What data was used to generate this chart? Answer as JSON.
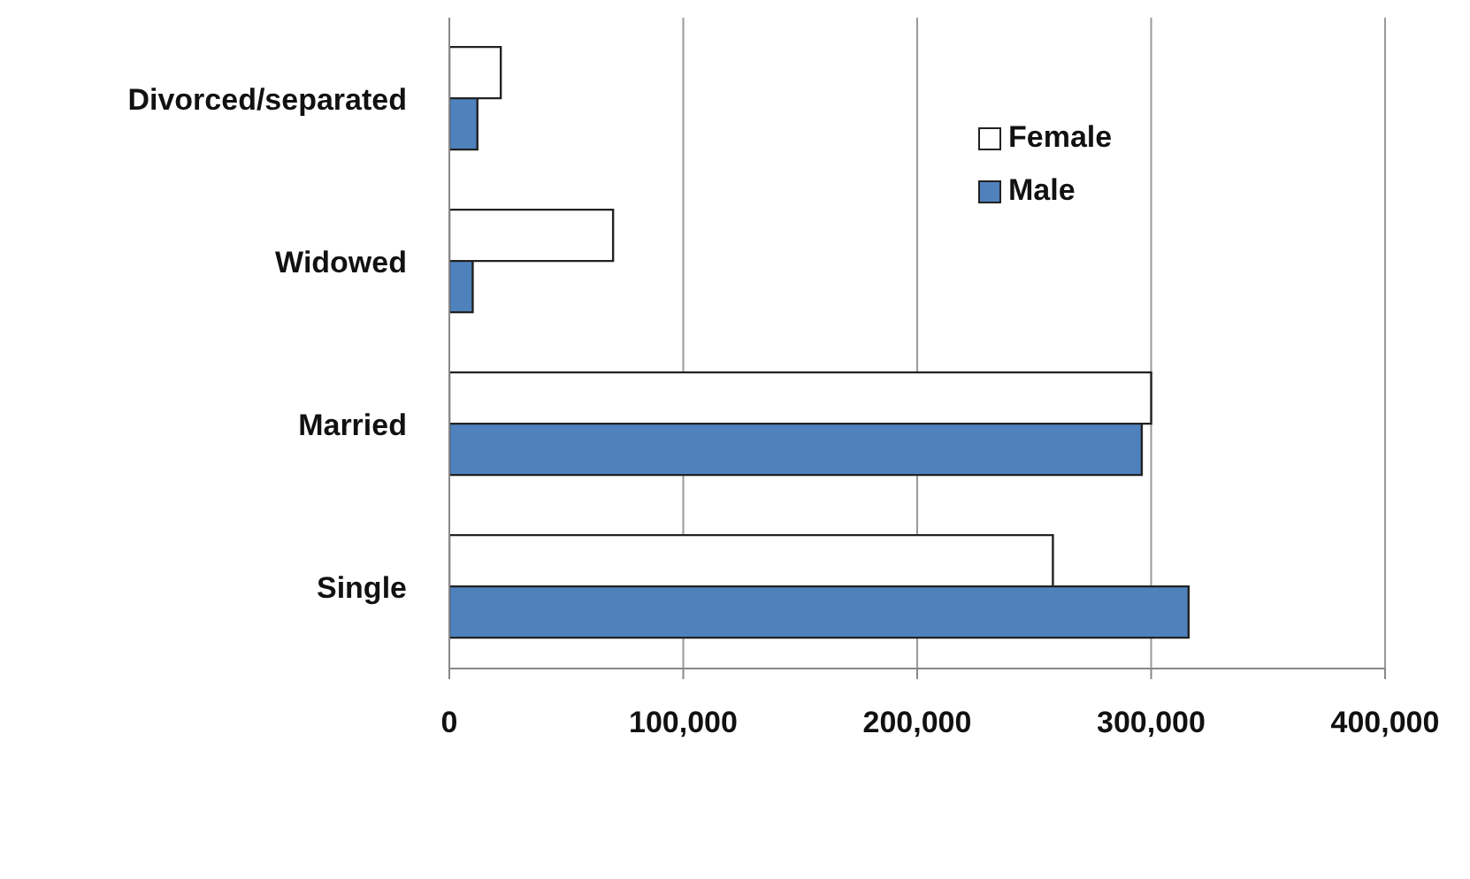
{
  "chart_data": {
    "type": "bar",
    "orientation": "horizontal",
    "categories": [
      "Divorced/separated",
      "Widowed",
      "Married",
      "Single"
    ],
    "series": [
      {
        "name": "Female",
        "color": "#ffffff",
        "values": [
          22000,
          70000,
          300000,
          258000
        ]
      },
      {
        "name": "Male",
        "color": "#4f81bd",
        "values": [
          12000,
          10000,
          296000,
          316000
        ]
      }
    ],
    "xlim": [
      0,
      400000
    ],
    "xticks": [
      {
        "value": 0,
        "label": "0"
      },
      {
        "value": 100000,
        "label": "100,000"
      },
      {
        "value": 200000,
        "label": "200,000"
      },
      {
        "value": 300000,
        "label": "300,000"
      },
      {
        "value": 400000,
        "label": "400,000"
      }
    ],
    "grid": "x",
    "legend": "top right"
  }
}
